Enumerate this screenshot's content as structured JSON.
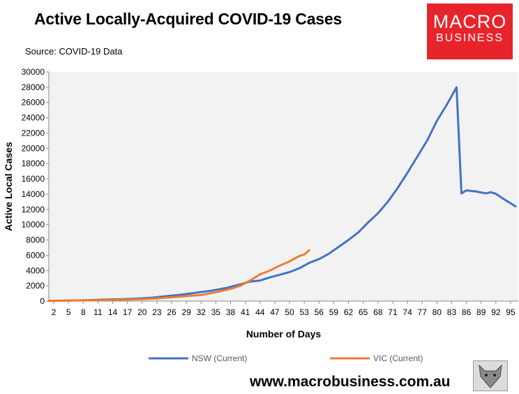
{
  "header": {
    "title": "Active Locally-Acquired COVID-19 Cases",
    "source": "Source: COVID-19 Data"
  },
  "logo": {
    "line1": "MACRO",
    "line2": "BUSINESS",
    "icon": "wolf-mascot-icon"
  },
  "footer": {
    "url": "www.macrobusiness.com.au"
  },
  "colors": {
    "nsw": "#4472c4",
    "vic": "#ed7d31",
    "plot_bg": "#f2f2f2",
    "logo_bg": "#e8242b"
  },
  "chart_data": {
    "type": "line",
    "title": "Active Locally-Acquired COVID-19 Cases",
    "xlabel": "Number of Days",
    "ylabel": "Active Local Cases",
    "xlim": [
      1,
      96
    ],
    "ylim": [
      0,
      30000
    ],
    "x_ticks": [
      2,
      5,
      8,
      11,
      14,
      17,
      20,
      23,
      26,
      29,
      32,
      35,
      38,
      41,
      44,
      47,
      50,
      53,
      56,
      59,
      62,
      65,
      68,
      71,
      74,
      77,
      80,
      83,
      86,
      89,
      92,
      95
    ],
    "y_ticks": [
      0,
      2000,
      4000,
      6000,
      8000,
      10000,
      12000,
      14000,
      16000,
      18000,
      20000,
      22000,
      24000,
      26000,
      28000,
      30000
    ],
    "grid": false,
    "legend": "bottom",
    "series": [
      {
        "name": "NSW (Current)",
        "x": [
          1,
          5,
          8,
          10,
          13,
          16,
          19,
          22,
          25,
          28,
          31,
          34,
          37,
          40,
          42,
          44,
          46,
          48,
          50,
          52,
          54,
          56,
          58,
          60,
          62,
          64,
          66,
          68,
          70,
          72,
          74,
          76,
          78,
          80,
          82,
          84,
          85,
          86,
          88,
          90,
          91,
          92,
          94,
          96
        ],
        "y": [
          30,
          60,
          100,
          150,
          200,
          250,
          330,
          450,
          650,
          850,
          1100,
          1350,
          1700,
          2200,
          2550,
          2700,
          3100,
          3450,
          3800,
          4300,
          5000,
          5500,
          6200,
          7100,
          8000,
          9000,
          10300,
          11500,
          13000,
          14800,
          16800,
          18900,
          21000,
          23600,
          25700,
          28000,
          14100,
          14500,
          14350,
          14100,
          14250,
          14050,
          13200,
          12400
        ]
      },
      {
        "name": "VIC (Current)",
        "x": [
          1,
          5,
          8,
          11,
          14,
          17,
          20,
          23,
          26,
          29,
          32,
          35,
          38,
          40,
          42,
          43,
          44,
          46,
          48,
          50,
          52,
          53,
          54
        ],
        "y": [
          50,
          60,
          80,
          120,
          150,
          200,
          250,
          350,
          500,
          650,
          800,
          1150,
          1600,
          2000,
          2700,
          3100,
          3500,
          4000,
          4650,
          5200,
          5900,
          6100,
          6650
        ]
      }
    ]
  }
}
